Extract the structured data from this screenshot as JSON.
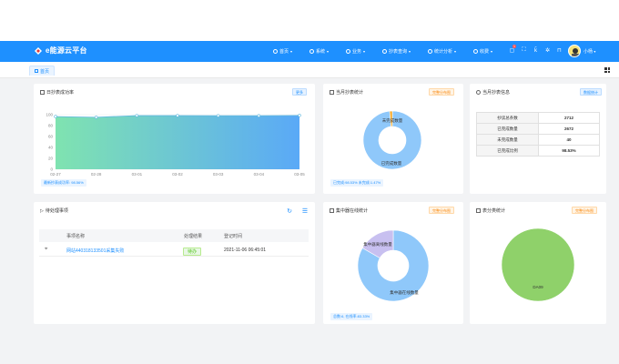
{
  "app": {
    "title": "e能源云平台"
  },
  "nav": [
    {
      "label": "首页",
      "icon": "home-icon"
    },
    {
      "label": "系统",
      "icon": "globe-icon"
    },
    {
      "label": "业务",
      "icon": "briefcase-icon"
    },
    {
      "label": "抄表查询",
      "icon": "meter-icon"
    },
    {
      "label": "统计分析",
      "icon": "bar-chart-icon"
    },
    {
      "label": "收费",
      "icon": "wallet-icon"
    }
  ],
  "header": {
    "notification_count": "1",
    "user_name": "小杨"
  },
  "tabs": [
    {
      "label": "首页"
    }
  ],
  "daily_card": {
    "title": "日抄表成功率",
    "chip": "更多",
    "footer": "最新抄表成功率: 98.56%"
  },
  "monthly_card": {
    "title": "当月抄表统计",
    "chip": "完整分布图",
    "footer": "已完成:98.53% 未完成:1.47%",
    "slice_labels": {
      "incomplete": "未完成数量",
      "complete": "已完成数量"
    }
  },
  "info_card": {
    "title": "当月抄表信息",
    "chip": "数据统计",
    "rows": [
      {
        "key": "抄读总条数",
        "value": "2712"
      },
      {
        "key": "已完成数量",
        "value": "2672"
      },
      {
        "key": "未完成数量",
        "value": "40"
      },
      {
        "key": "已完成比例",
        "value": "98.53%"
      }
    ]
  },
  "todo_card": {
    "title": "待处理事项",
    "columns": [
      "事项名称",
      "处理结果",
      "登记时间"
    ],
    "rows": [
      {
        "name": "网站440318133501采集失败",
        "result": "待办",
        "time": "2021-11-06 06:45:01"
      }
    ]
  },
  "concentrator_card": {
    "title": "集中器在线统计",
    "chip": "完整分布图",
    "footer": "总数:6, 在线率:83.33%",
    "slice_labels": {
      "offline": "集中器离线数量",
      "online": "集中器在线数量"
    }
  },
  "meter_type_card": {
    "title": "表分类统计",
    "chip": "完整分布图",
    "slice_label": "DA09"
  },
  "chart_data": [
    {
      "type": "area",
      "x": [
        "02-27",
        "02-28",
        "03-01",
        "03-02",
        "03-03",
        "03-04",
        "03-05"
      ],
      "values": [
        96.5,
        95.2,
        98.3,
        98.2,
        98.1,
        98.0,
        98.6
      ],
      "ylim": [
        0,
        100
      ],
      "yticks": [
        0,
        20,
        40,
        60,
        80,
        100
      ],
      "grid": true,
      "colors": {
        "start": "#7fe3b0",
        "end": "#5aa9f7",
        "line": "#5fb8e0"
      }
    },
    {
      "type": "pie",
      "labels": [
        "已完成数量",
        "未完成数量"
      ],
      "values": [
        98.53,
        1.47
      ],
      "colors": [
        "#8fc8fa",
        "#f5a623"
      ],
      "donut": true
    },
    {
      "type": "pie",
      "labels": [
        "集中器在线数量",
        "集中器离线数量"
      ],
      "values": [
        83.33,
        16.67
      ],
      "colors": [
        "#8fc8fa",
        "#c8c0f0"
      ],
      "donut": true
    },
    {
      "type": "pie",
      "labels": [
        "DA09"
      ],
      "values": [
        100
      ],
      "colors": [
        "#8fd16a"
      ],
      "donut": false
    }
  ]
}
